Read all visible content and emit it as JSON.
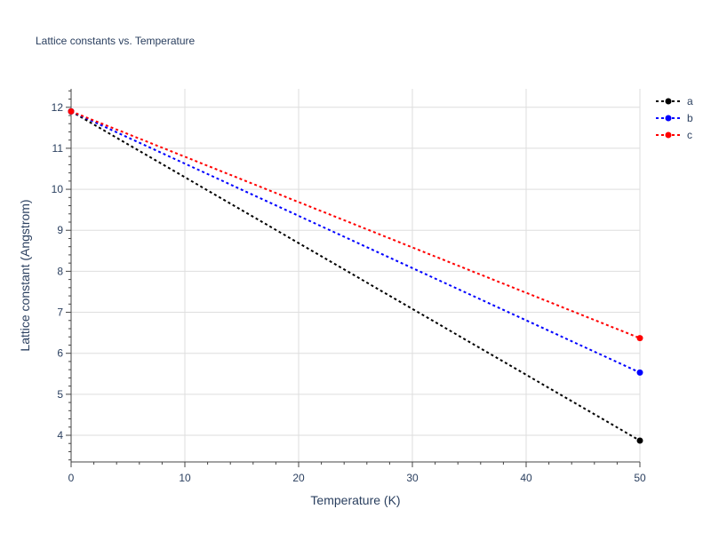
{
  "chart_data": {
    "type": "line",
    "title": "Lattice constants vs. Temperature",
    "xlabel": "Temperature (K)",
    "ylabel": "Lattice constant (Angstrom)",
    "xlim": [
      0,
      50
    ],
    "ylim": [
      3.35,
      12.45
    ],
    "x_ticks": [
      0,
      10,
      20,
      30,
      40,
      50
    ],
    "y_ticks": [
      4,
      5,
      6,
      7,
      8,
      9,
      10,
      11,
      12
    ],
    "grid": true,
    "legend_position": "top-right",
    "series": [
      {
        "name": "a",
        "color": "#000000",
        "x": [
          0,
          50
        ],
        "y": [
          11.9,
          3.87
        ]
      },
      {
        "name": "b",
        "color": "#0000ff",
        "x": [
          0,
          50
        ],
        "y": [
          11.9,
          5.53
        ]
      },
      {
        "name": "c",
        "color": "#ff0000",
        "x": [
          0,
          50
        ],
        "y": [
          11.9,
          6.37
        ]
      }
    ]
  }
}
